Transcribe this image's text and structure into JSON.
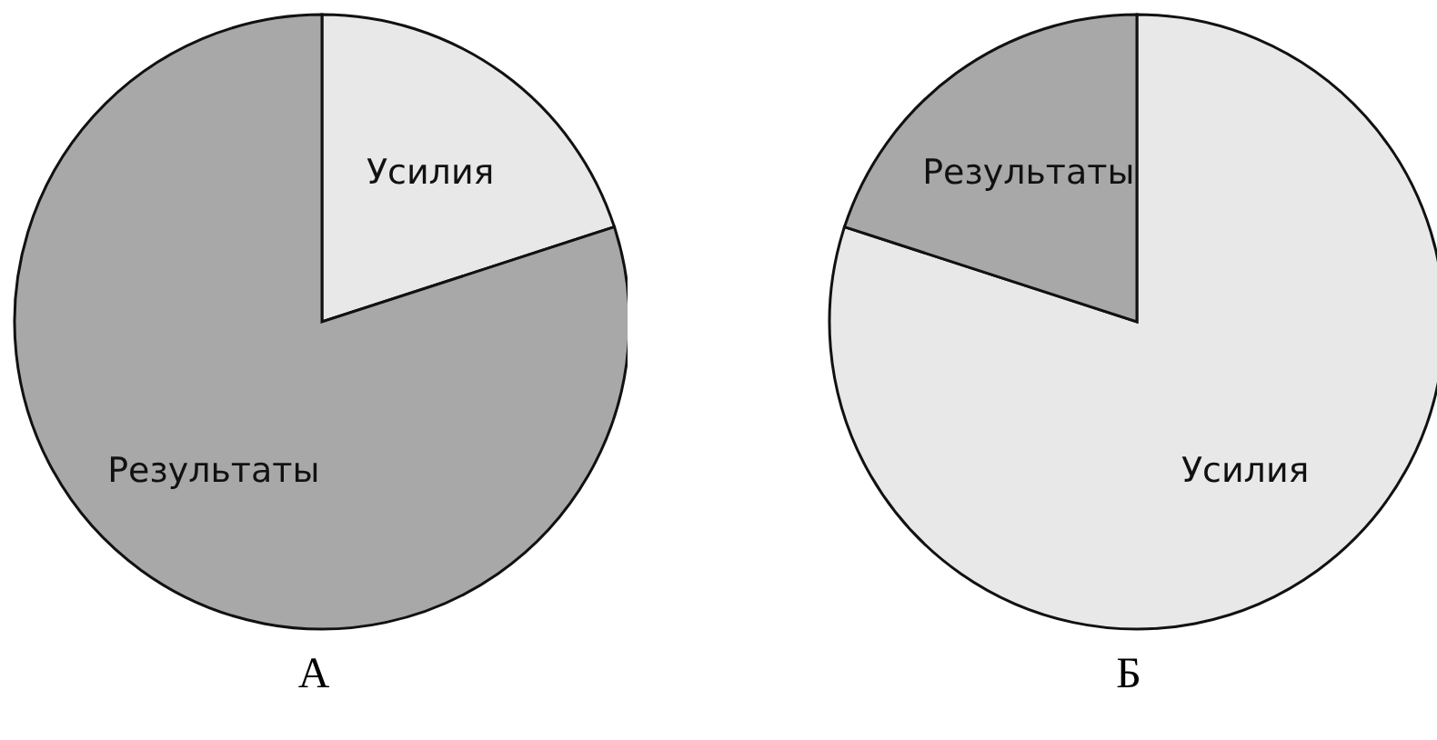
{
  "chart_data": [
    {
      "type": "pie",
      "title": "А",
      "categories": [
        "Усилия",
        "Результаты"
      ],
      "values": [
        20,
        80
      ],
      "colors": [
        "#e8e8e8",
        "#a8a8a8"
      ]
    },
    {
      "type": "pie",
      "title": "Б",
      "categories": [
        "Усилия",
        "Результаты"
      ],
      "values": [
        80,
        20
      ],
      "colors": [
        "#e8e8e8",
        "#a8a8a8"
      ]
    }
  ]
}
